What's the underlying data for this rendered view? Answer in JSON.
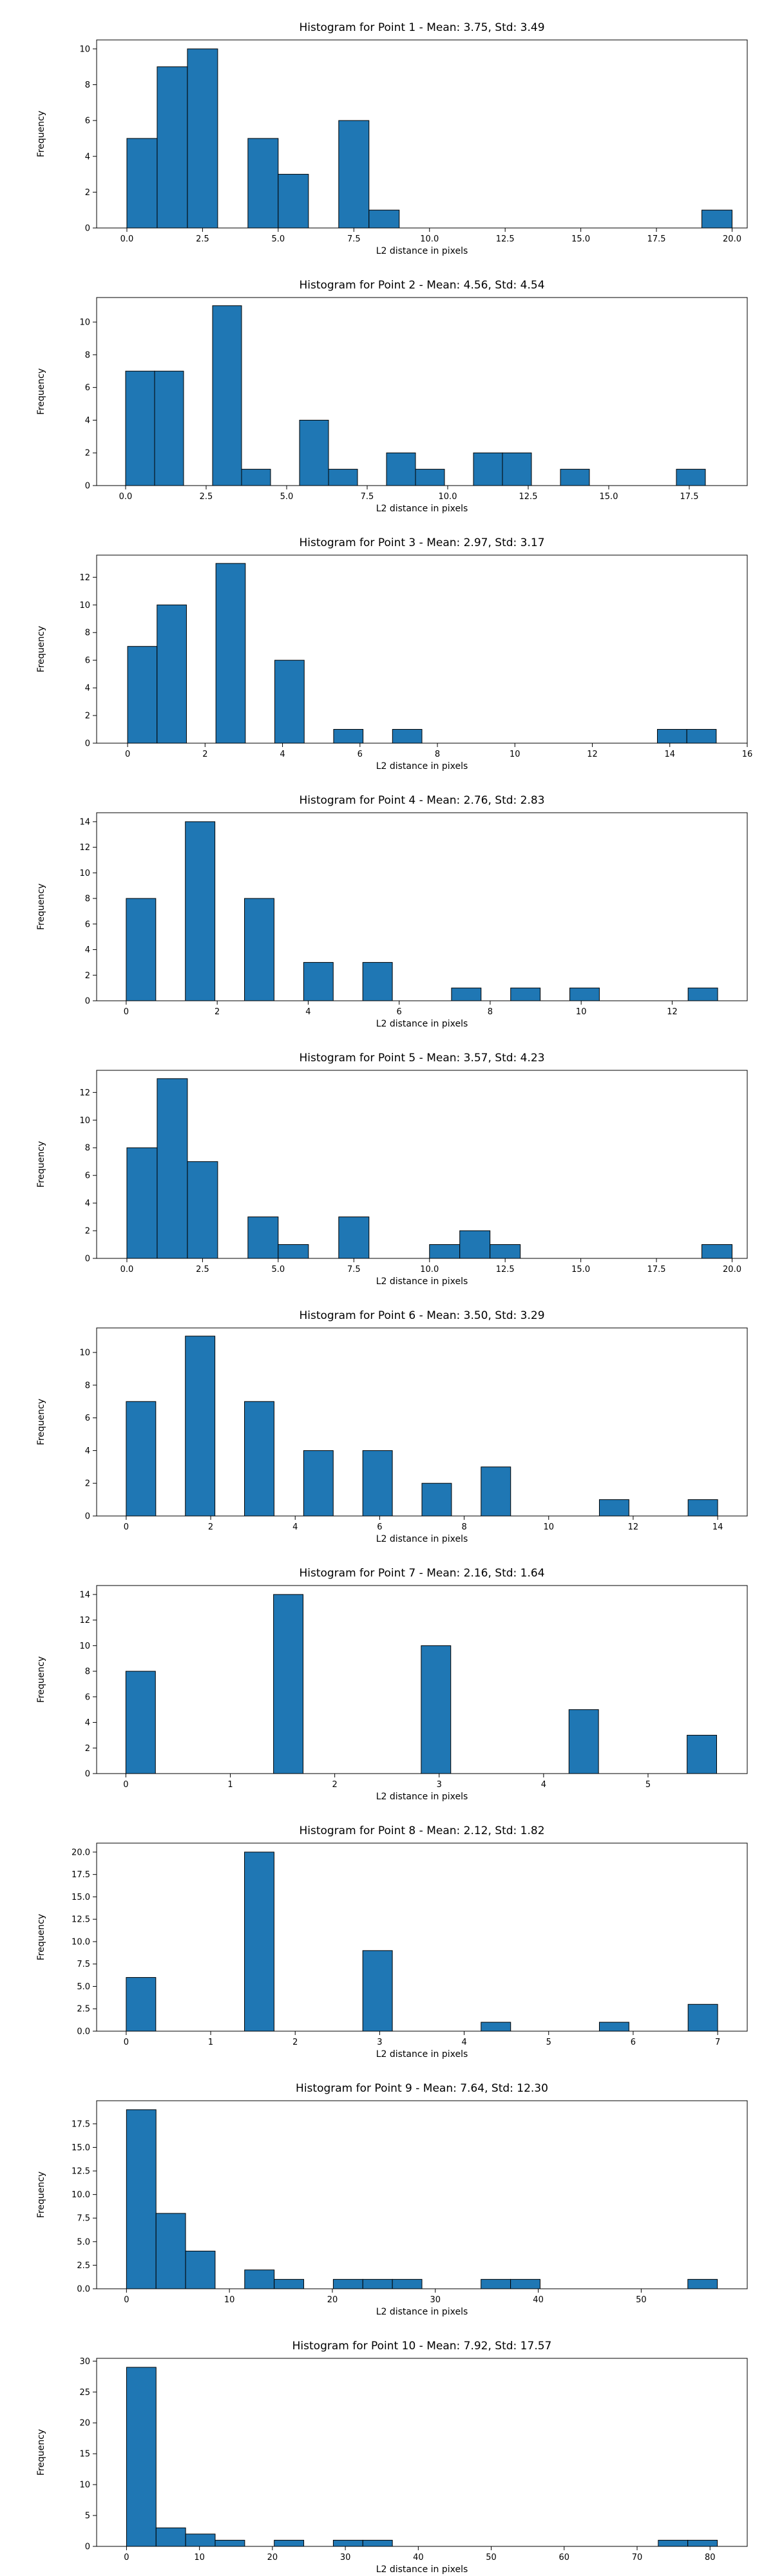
{
  "colors": {
    "bar_fill": "#1f77b4",
    "bar_edge": "#000000",
    "axes": "#000000",
    "background": "#ffffff"
  },
  "chart_data": [
    {
      "type": "bar",
      "title": "Histogram for Point 1 - Mean: 3.75, Std: 3.49",
      "xlabel": "L2 distance in pixels",
      "ylabel": "Frequency",
      "xlim": [
        -1.0,
        20.5
      ],
      "ylim": [
        0,
        10.5
      ],
      "xticks": [
        0.0,
        2.5,
        5.0,
        7.5,
        10.0,
        12.5,
        15.0,
        17.5,
        20.0
      ],
      "xticklabels": [
        "0.0",
        "2.5",
        "5.0",
        "7.5",
        "10.0",
        "12.5",
        "15.0",
        "17.5",
        "20.0"
      ],
      "yticks": [
        0,
        2,
        4,
        6,
        8,
        10
      ],
      "yticklabels": [
        "0",
        "2",
        "4",
        "6",
        "8",
        "10"
      ],
      "bins": [
        {
          "x0": 0.0,
          "x1": 1.0,
          "count": 5
        },
        {
          "x0": 1.0,
          "x1": 2.0,
          "count": 9
        },
        {
          "x0": 2.0,
          "x1": 3.0,
          "count": 10
        },
        {
          "x0": 4.0,
          "x1": 5.0,
          "count": 5
        },
        {
          "x0": 5.0,
          "x1": 6.0,
          "count": 3
        },
        {
          "x0": 7.0,
          "x1": 8.0,
          "count": 6
        },
        {
          "x0": 8.0,
          "x1": 9.0,
          "count": 1
        },
        {
          "x0": 19.0,
          "x1": 20.0,
          "count": 1
        }
      ]
    },
    {
      "type": "bar",
      "title": "Histogram for Point 2 - Mean: 4.56, Std: 4.54",
      "xlabel": "L2 distance in pixels",
      "ylabel": "Frequency",
      "xlim": [
        -0.9,
        19.3
      ],
      "ylim": [
        0,
        11.5
      ],
      "xticks": [
        0.0,
        2.5,
        5.0,
        7.5,
        10.0,
        12.5,
        15.0,
        17.5
      ],
      "xticklabels": [
        "0.0",
        "2.5",
        "5.0",
        "7.5",
        "10.0",
        "12.5",
        "15.0",
        "17.5"
      ],
      "yticks": [
        0,
        2,
        4,
        6,
        8,
        10
      ],
      "yticklabels": [
        "0",
        "2",
        "4",
        "6",
        "8",
        "10"
      ],
      "bins": [
        {
          "x0": 0.0,
          "x1": 0.9,
          "count": 7
        },
        {
          "x0": 0.9,
          "x1": 1.8,
          "count": 7
        },
        {
          "x0": 2.7,
          "x1": 3.6,
          "count": 11
        },
        {
          "x0": 3.6,
          "x1": 4.5,
          "count": 1
        },
        {
          "x0": 5.4,
          "x1": 6.3,
          "count": 4
        },
        {
          "x0": 6.3,
          "x1": 7.2,
          "count": 1
        },
        {
          "x0": 8.1,
          "x1": 9.0,
          "count": 2
        },
        {
          "x0": 9.0,
          "x1": 9.9,
          "count": 1
        },
        {
          "x0": 10.8,
          "x1": 11.7,
          "count": 2
        },
        {
          "x0": 11.7,
          "x1": 12.6,
          "count": 2
        },
        {
          "x0": 13.5,
          "x1": 14.4,
          "count": 1
        },
        {
          "x0": 17.1,
          "x1": 18.0,
          "count": 1
        }
      ]
    },
    {
      "type": "bar",
      "title": "Histogram for Point 3 - Mean: 2.97, Std: 3.17",
      "xlabel": "L2 distance in pixels",
      "ylabel": "Frequency",
      "xlim": [
        -0.8,
        16.0
      ],
      "ylim": [
        0,
        13.6
      ],
      "xticks": [
        0,
        2,
        4,
        6,
        8,
        10,
        12,
        14,
        16
      ],
      "xticklabels": [
        "0",
        "2",
        "4",
        "6",
        "8",
        "10",
        "12",
        "14",
        "16"
      ],
      "yticks": [
        0,
        2,
        4,
        6,
        8,
        10,
        12
      ],
      "yticklabels": [
        "0",
        "2",
        "4",
        "6",
        "8",
        "10",
        "12"
      ],
      "bins": [
        {
          "x0": 0.0,
          "x1": 0.76,
          "count": 7
        },
        {
          "x0": 0.76,
          "x1": 1.52,
          "count": 10
        },
        {
          "x0": 2.28,
          "x1": 3.04,
          "count": 13
        },
        {
          "x0": 3.8,
          "x1": 4.56,
          "count": 6
        },
        {
          "x0": 5.32,
          "x1": 6.08,
          "count": 1
        },
        {
          "x0": 6.84,
          "x1": 7.6,
          "count": 1
        },
        {
          "x0": 13.68,
          "x1": 14.44,
          "count": 1
        },
        {
          "x0": 14.44,
          "x1": 15.2,
          "count": 1
        }
      ]
    },
    {
      "type": "bar",
      "title": "Histogram for Point 4 - Mean: 2.76, Std: 2.83",
      "xlabel": "L2 distance in pixels",
      "ylabel": "Frequency",
      "xlim": [
        -0.65,
        13.65
      ],
      "ylim": [
        0,
        14.7
      ],
      "xticks": [
        0,
        2,
        4,
        6,
        8,
        10,
        12
      ],
      "xticklabels": [
        "0",
        "2",
        "4",
        "6",
        "8",
        "10",
        "12"
      ],
      "yticks": [
        0,
        2,
        4,
        6,
        8,
        10,
        12,
        14
      ],
      "yticklabels": [
        "0",
        "2",
        "4",
        "6",
        "8",
        "10",
        "12",
        "14"
      ],
      "bins": [
        {
          "x0": 0.0,
          "x1": 0.65,
          "count": 8
        },
        {
          "x0": 1.3,
          "x1": 1.95,
          "count": 14
        },
        {
          "x0": 2.6,
          "x1": 3.25,
          "count": 8
        },
        {
          "x0": 3.9,
          "x1": 4.55,
          "count": 3
        },
        {
          "x0": 5.2,
          "x1": 5.85,
          "count": 3
        },
        {
          "x0": 7.15,
          "x1": 7.8,
          "count": 1
        },
        {
          "x0": 8.45,
          "x1": 9.1,
          "count": 1
        },
        {
          "x0": 9.75,
          "x1": 10.4,
          "count": 1
        },
        {
          "x0": 12.35,
          "x1": 13.0,
          "count": 1
        }
      ]
    },
    {
      "type": "bar",
      "title": "Histogram for Point 5 - Mean: 3.57, Std: 4.23",
      "xlabel": "L2 distance in pixels",
      "ylabel": "Frequency",
      "xlim": [
        -1.0,
        20.5
      ],
      "ylim": [
        0,
        13.6
      ],
      "xticks": [
        0.0,
        2.5,
        5.0,
        7.5,
        10.0,
        12.5,
        15.0,
        17.5,
        20.0
      ],
      "xticklabels": [
        "0.0",
        "2.5",
        "5.0",
        "7.5",
        "10.0",
        "12.5",
        "15.0",
        "17.5",
        "20.0"
      ],
      "yticks": [
        0,
        2,
        4,
        6,
        8,
        10,
        12
      ],
      "yticklabels": [
        "0",
        "2",
        "4",
        "6",
        "8",
        "10",
        "12"
      ],
      "bins": [
        {
          "x0": 0.0,
          "x1": 1.0,
          "count": 8
        },
        {
          "x0": 1.0,
          "x1": 2.0,
          "count": 13
        },
        {
          "x0": 2.0,
          "x1": 3.0,
          "count": 7
        },
        {
          "x0": 4.0,
          "x1": 5.0,
          "count": 3
        },
        {
          "x0": 5.0,
          "x1": 6.0,
          "count": 1
        },
        {
          "x0": 7.0,
          "x1": 8.0,
          "count": 3
        },
        {
          "x0": 10.0,
          "x1": 11.0,
          "count": 1
        },
        {
          "x0": 11.0,
          "x1": 12.0,
          "count": 2
        },
        {
          "x0": 12.0,
          "x1": 13.0,
          "count": 1
        },
        {
          "x0": 19.0,
          "x1": 20.0,
          "count": 1
        }
      ]
    },
    {
      "type": "bar",
      "title": "Histogram for Point 6 - Mean: 3.50, Std: 3.29",
      "xlabel": "L2 distance in pixels",
      "ylabel": "Frequency",
      "xlim": [
        -0.7,
        14.7
      ],
      "ylim": [
        0,
        11.5
      ],
      "xticks": [
        0,
        2,
        4,
        6,
        8,
        10,
        12,
        14
      ],
      "xticklabels": [
        "0",
        "2",
        "4",
        "6",
        "8",
        "10",
        "12",
        "14"
      ],
      "yticks": [
        0,
        2,
        4,
        6,
        8,
        10
      ],
      "yticklabels": [
        "0",
        "2",
        "4",
        "6",
        "8",
        "10"
      ],
      "bins": [
        {
          "x0": 0.0,
          "x1": 0.7,
          "count": 7
        },
        {
          "x0": 1.4,
          "x1": 2.1,
          "count": 11
        },
        {
          "x0": 2.8,
          "x1": 3.5,
          "count": 7
        },
        {
          "x0": 4.2,
          "x1": 4.9,
          "count": 4
        },
        {
          "x0": 5.6,
          "x1": 6.3,
          "count": 4
        },
        {
          "x0": 7.0,
          "x1": 7.7,
          "count": 2
        },
        {
          "x0": 8.4,
          "x1": 9.1,
          "count": 3
        },
        {
          "x0": 11.2,
          "x1": 11.9,
          "count": 1
        },
        {
          "x0": 13.3,
          "x1": 14.0,
          "count": 1
        }
      ]
    },
    {
      "type": "bar",
      "title": "Histogram for Point 7 - Mean: 2.16, Std: 1.64",
      "xlabel": "L2 distance in pixels",
      "ylabel": "Frequency",
      "xlim": [
        -0.28,
        5.95
      ],
      "ylim": [
        0,
        14.7
      ],
      "xticks": [
        0,
        1,
        2,
        3,
        4,
        5
      ],
      "xticklabels": [
        "0",
        "1",
        "2",
        "3",
        "4",
        "5"
      ],
      "yticks": [
        0,
        2,
        4,
        6,
        8,
        10,
        12,
        14
      ],
      "yticklabels": [
        "0",
        "2",
        "4",
        "6",
        "8",
        "10",
        "12",
        "14"
      ],
      "bins": [
        {
          "x0": 0.0,
          "x1": 0.283,
          "count": 8
        },
        {
          "x0": 1.414,
          "x1": 1.697,
          "count": 14
        },
        {
          "x0": 2.828,
          "x1": 3.111,
          "count": 10
        },
        {
          "x0": 4.243,
          "x1": 4.526,
          "count": 5
        },
        {
          "x0": 5.374,
          "x1": 5.657,
          "count": 3
        }
      ]
    },
    {
      "type": "bar",
      "title": "Histogram for Point 8 - Mean: 2.12, Std: 1.82",
      "xlabel": "L2 distance in pixels",
      "ylabel": "Frequency",
      "xlim": [
        -0.35,
        7.35
      ],
      "ylim": [
        0,
        21
      ],
      "xticks": [
        0,
        1,
        2,
        3,
        4,
        5,
        6,
        7
      ],
      "xticklabels": [
        "0",
        "1",
        "2",
        "3",
        "4",
        "5",
        "6",
        "7"
      ],
      "yticks": [
        0.0,
        2.5,
        5.0,
        7.5,
        10.0,
        12.5,
        15.0,
        17.5,
        20.0
      ],
      "yticklabels": [
        "0.0",
        "2.5",
        "5.0",
        "7.5",
        "10.0",
        "12.5",
        "15.0",
        "17.5",
        "20.0"
      ],
      "bins": [
        {
          "x0": 0.0,
          "x1": 0.35,
          "count": 6
        },
        {
          "x0": 1.4,
          "x1": 1.75,
          "count": 20
        },
        {
          "x0": 2.8,
          "x1": 3.15,
          "count": 9
        },
        {
          "x0": 4.2,
          "x1": 4.55,
          "count": 1
        },
        {
          "x0": 5.6,
          "x1": 5.95,
          "count": 1
        },
        {
          "x0": 6.65,
          "x1": 7.0,
          "count": 3
        }
      ]
    },
    {
      "type": "bar",
      "title": "Histogram for Point 9 - Mean: 7.64, Std: 12.30",
      "xlabel": "L2 distance in pixels",
      "ylabel": "Frequency",
      "xlim": [
        -2.9,
        60.3
      ],
      "ylim": [
        0,
        19.95
      ],
      "xticks": [
        0,
        10,
        20,
        30,
        40,
        50
      ],
      "xticklabels": [
        "0",
        "10",
        "20",
        "30",
        "40",
        "50"
      ],
      "yticks": [
        0.0,
        2.5,
        5.0,
        7.5,
        10.0,
        12.5,
        15.0,
        17.5
      ],
      "yticklabels": [
        "0.0",
        "2.5",
        "5.0",
        "7.5",
        "10.0",
        "12.5",
        "15.0",
        "17.5"
      ],
      "bins": [
        {
          "x0": 0.0,
          "x1": 2.87,
          "count": 19
        },
        {
          "x0": 2.87,
          "x1": 5.74,
          "count": 8
        },
        {
          "x0": 5.74,
          "x1": 8.61,
          "count": 4
        },
        {
          "x0": 11.48,
          "x1": 14.35,
          "count": 2
        },
        {
          "x0": 14.35,
          "x1": 17.22,
          "count": 1
        },
        {
          "x0": 20.09,
          "x1": 22.96,
          "count": 1
        },
        {
          "x0": 22.96,
          "x1": 25.83,
          "count": 1
        },
        {
          "x0": 25.83,
          "x1": 28.7,
          "count": 1
        },
        {
          "x0": 34.44,
          "x1": 37.31,
          "count": 1
        },
        {
          "x0": 37.31,
          "x1": 40.18,
          "count": 1
        },
        {
          "x0": 54.53,
          "x1": 57.4,
          "count": 1
        }
      ]
    },
    {
      "type": "bar",
      "title": "Histogram for Point 10 - Mean: 7.92, Std: 17.57",
      "xlabel": "L2 distance in pixels",
      "ylabel": "Frequency",
      "xlim": [
        -4.1,
        85.1
      ],
      "ylim": [
        0,
        30.45
      ],
      "xticks": [
        0,
        10,
        20,
        30,
        40,
        50,
        60,
        70,
        80
      ],
      "xticklabels": [
        "0",
        "10",
        "20",
        "30",
        "40",
        "50",
        "60",
        "70",
        "80"
      ],
      "yticks": [
        0,
        5,
        10,
        15,
        20,
        25,
        30
      ],
      "yticklabels": [
        "0",
        "5",
        "10",
        "15",
        "20",
        "25",
        "30"
      ],
      "bins": [
        {
          "x0": 0.0,
          "x1": 4.05,
          "count": 29
        },
        {
          "x0": 4.05,
          "x1": 8.1,
          "count": 3
        },
        {
          "x0": 8.1,
          "x1": 12.15,
          "count": 2
        },
        {
          "x0": 12.15,
          "x1": 16.2,
          "count": 1
        },
        {
          "x0": 20.25,
          "x1": 24.3,
          "count": 1
        },
        {
          "x0": 28.35,
          "x1": 32.4,
          "count": 1
        },
        {
          "x0": 32.4,
          "x1": 36.45,
          "count": 1
        },
        {
          "x0": 72.9,
          "x1": 76.95,
          "count": 1
        },
        {
          "x0": 76.95,
          "x1": 81.0,
          "count": 1
        }
      ]
    }
  ]
}
